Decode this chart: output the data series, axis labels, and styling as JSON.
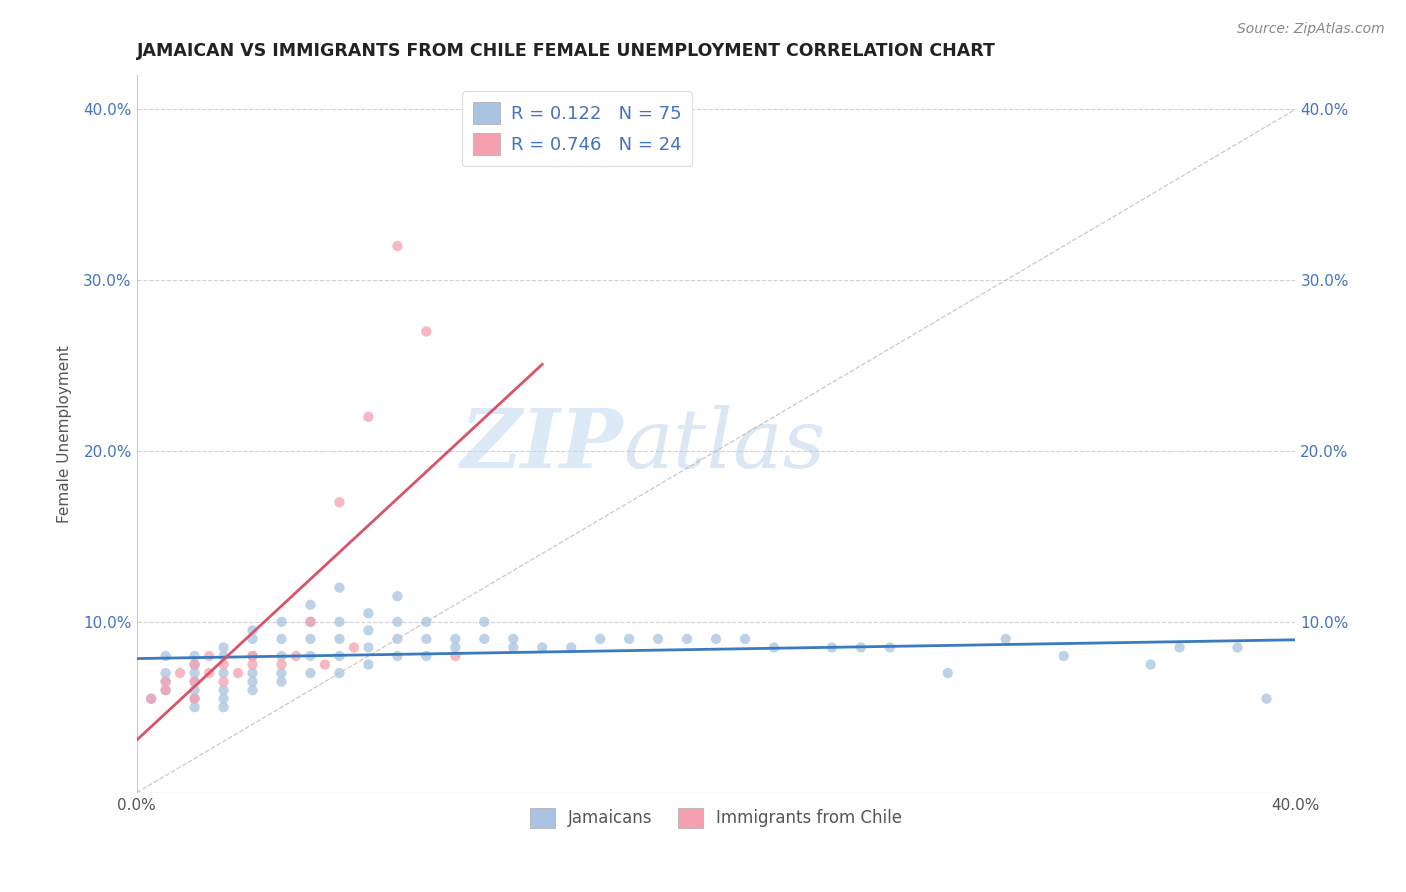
{
  "title": "JAMAICAN VS IMMIGRANTS FROM CHILE FEMALE UNEMPLOYMENT CORRELATION CHART",
  "source": "Source: ZipAtlas.com",
  "ylabel": "Female Unemployment",
  "xlim": [
    0.0,
    0.4
  ],
  "ylim": [
    0.0,
    0.42
  ],
  "ytick_vals": [
    0.0,
    0.1,
    0.2,
    0.3,
    0.4
  ],
  "xtick_vals": [
    0.0,
    0.1,
    0.2,
    0.3,
    0.4
  ],
  "jamaicans_color": "#a8c4e0",
  "chile_color": "#f4a0b0",
  "jamaicans_R": 0.122,
  "jamaicans_N": 75,
  "chile_R": 0.746,
  "chile_N": 24,
  "trend_line_color_jamaica": "#3a7abf",
  "trend_line_color_chile": "#d9546a",
  "watermark_zip": "ZIP",
  "watermark_atlas": "atlas",
  "background_color": "#ffffff",
  "grid_color": "#cccccc",
  "legend_label_jamaica": "Jamaicans",
  "legend_label_chile": "Immigrants from Chile",
  "scatter_alpha": 0.75,
  "scatter_size": 55,
  "jamaicans_x": [
    0.005,
    0.01,
    0.01,
    0.01,
    0.01,
    0.02,
    0.02,
    0.02,
    0.02,
    0.02,
    0.02,
    0.02,
    0.03,
    0.03,
    0.03,
    0.03,
    0.03,
    0.03,
    0.04,
    0.04,
    0.04,
    0.04,
    0.04,
    0.04,
    0.05,
    0.05,
    0.05,
    0.05,
    0.05,
    0.06,
    0.06,
    0.06,
    0.06,
    0.06,
    0.07,
    0.07,
    0.07,
    0.07,
    0.07,
    0.08,
    0.08,
    0.08,
    0.08,
    0.09,
    0.09,
    0.09,
    0.09,
    0.1,
    0.1,
    0.1,
    0.11,
    0.11,
    0.12,
    0.12,
    0.13,
    0.13,
    0.14,
    0.15,
    0.16,
    0.17,
    0.18,
    0.19,
    0.2,
    0.21,
    0.22,
    0.24,
    0.25,
    0.26,
    0.28,
    0.3,
    0.32,
    0.35,
    0.36,
    0.38,
    0.39
  ],
  "jamaicans_y": [
    0.055,
    0.06,
    0.065,
    0.07,
    0.08,
    0.05,
    0.055,
    0.06,
    0.065,
    0.07,
    0.075,
    0.08,
    0.05,
    0.055,
    0.06,
    0.07,
    0.08,
    0.085,
    0.06,
    0.065,
    0.07,
    0.08,
    0.09,
    0.095,
    0.065,
    0.07,
    0.08,
    0.09,
    0.1,
    0.07,
    0.08,
    0.09,
    0.1,
    0.11,
    0.07,
    0.08,
    0.09,
    0.1,
    0.12,
    0.075,
    0.085,
    0.095,
    0.105,
    0.08,
    0.09,
    0.1,
    0.115,
    0.08,
    0.09,
    0.1,
    0.085,
    0.09,
    0.09,
    0.1,
    0.085,
    0.09,
    0.085,
    0.085,
    0.09,
    0.09,
    0.09,
    0.09,
    0.09,
    0.09,
    0.085,
    0.085,
    0.085,
    0.085,
    0.07,
    0.09,
    0.08,
    0.075,
    0.085,
    0.085,
    0.055
  ],
  "chile_x": [
    0.005,
    0.01,
    0.01,
    0.015,
    0.02,
    0.02,
    0.02,
    0.025,
    0.025,
    0.03,
    0.03,
    0.035,
    0.04,
    0.04,
    0.05,
    0.055,
    0.06,
    0.065,
    0.07,
    0.075,
    0.08,
    0.09,
    0.1,
    0.11
  ],
  "chile_y": [
    0.055,
    0.06,
    0.065,
    0.07,
    0.055,
    0.065,
    0.075,
    0.07,
    0.08,
    0.065,
    0.075,
    0.07,
    0.075,
    0.08,
    0.075,
    0.08,
    0.1,
    0.075,
    0.17,
    0.085,
    0.22,
    0.32,
    0.27,
    0.08
  ]
}
